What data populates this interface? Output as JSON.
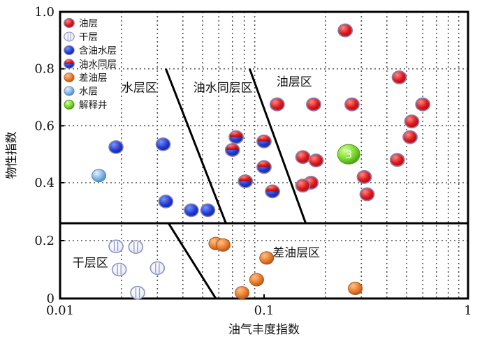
{
  "chart_data": {
    "type": "scatter",
    "x_scale": "log",
    "y_scale": "piecewise",
    "xlim": [
      0.01,
      1
    ],
    "ylim": [
      0,
      1.0
    ],
    "xlabel": "油气丰度指数",
    "ylabel": "物性指数",
    "x_ticks": [
      {
        "value": 0.01,
        "label": "0.01"
      },
      {
        "value": 0.1,
        "label": "0.1"
      },
      {
        "value": 1,
        "label": "1"
      }
    ],
    "y_ticks": [
      {
        "value": 0,
        "label": "0"
      },
      {
        "value": 0.2,
        "label": "0.2"
      },
      {
        "value": 0.4,
        "label": "0.4"
      },
      {
        "value": 0.6,
        "label": "0.6"
      },
      {
        "value": 0.8,
        "label": "0.8"
      },
      {
        "value": 1.0,
        "label": "1.0"
      }
    ],
    "grid": "dotted",
    "legend_position": "top-left",
    "legend": [
      {
        "label": "油层",
        "marker": "oil"
      },
      {
        "label": "干层",
        "marker": "dry"
      },
      {
        "label": "含油水层",
        "marker": "oilbearing_water"
      },
      {
        "label": "油水同层",
        "marker": "oil_water"
      },
      {
        "label": "差油层",
        "marker": "poor_oil"
      },
      {
        "label": "水层",
        "marker": "water"
      },
      {
        "label": "解释井",
        "marker": "interp"
      }
    ],
    "cutoff_line_y": 0.26,
    "boundary_lines": [
      {
        "from": [
          0.033,
          0.8
        ],
        "to": [
          0.065,
          0.26
        ]
      },
      {
        "from": [
          0.085,
          0.8
        ],
        "to": [
          0.16,
          0.26
        ]
      },
      {
        "from": [
          0.034,
          0.26
        ],
        "to": [
          0.058,
          0
        ]
      }
    ],
    "region_labels": [
      {
        "text": "水层区",
        "x": 0.02,
        "y": 0.72
      },
      {
        "text": "油水同层区",
        "x": 0.045,
        "y": 0.72
      },
      {
        "text": "油层区",
        "x": 0.115,
        "y": 0.74
      },
      {
        "text": "干层区",
        "x": 0.0115,
        "y": 0.11
      },
      {
        "text": "差油层区",
        "x": 0.11,
        "y": 0.145
      }
    ],
    "series": [
      {
        "name": "油层",
        "marker": "oil",
        "points": [
          [
            0.25,
            0.935
          ],
          [
            0.46,
            0.77
          ],
          [
            0.116,
            0.675
          ],
          [
            0.175,
            0.675
          ],
          [
            0.27,
            0.675
          ],
          [
            0.6,
            0.675
          ],
          [
            0.53,
            0.615
          ],
          [
            0.52,
            0.56
          ],
          [
            0.155,
            0.49
          ],
          [
            0.18,
            0.478
          ],
          [
            0.45,
            0.48
          ],
          [
            0.31,
            0.42
          ],
          [
            0.17,
            0.4
          ],
          [
            0.155,
            0.39
          ],
          [
            0.32,
            0.36
          ]
        ]
      },
      {
        "name": "干层",
        "marker": "dry",
        "points": [
          [
            0.0188,
            0.18
          ],
          [
            0.0235,
            0.178
          ],
          [
            0.0195,
            0.1
          ],
          [
            0.03,
            0.105
          ],
          [
            0.024,
            0.02
          ]
        ]
      },
      {
        "name": "含油水层",
        "marker": "oilbearing_water",
        "points": [
          [
            0.0188,
            0.525
          ],
          [
            0.032,
            0.535
          ],
          [
            0.033,
            0.335
          ],
          [
            0.044,
            0.305
          ],
          [
            0.053,
            0.305
          ]
        ]
      },
      {
        "name": "油水同层",
        "marker": "oil_water",
        "points": [
          [
            0.073,
            0.56
          ],
          [
            0.07,
            0.515
          ],
          [
            0.1,
            0.545
          ],
          [
            0.1,
            0.455
          ],
          [
            0.081,
            0.405
          ],
          [
            0.11,
            0.37
          ]
        ]
      },
      {
        "name": "差油层",
        "marker": "poor_oil",
        "points": [
          [
            0.058,
            0.19
          ],
          [
            0.063,
            0.185
          ],
          [
            0.103,
            0.14
          ],
          [
            0.092,
            0.065
          ],
          [
            0.078,
            0.02
          ],
          [
            0.28,
            0.035
          ]
        ]
      },
      {
        "name": "水层",
        "marker": "water",
        "points": [
          [
            0.0155,
            0.425
          ]
        ]
      },
      {
        "name": "解释井",
        "marker": "interp",
        "points": [
          [
            0.26,
            0.5
          ]
        ],
        "point_label": "3"
      }
    ]
  }
}
